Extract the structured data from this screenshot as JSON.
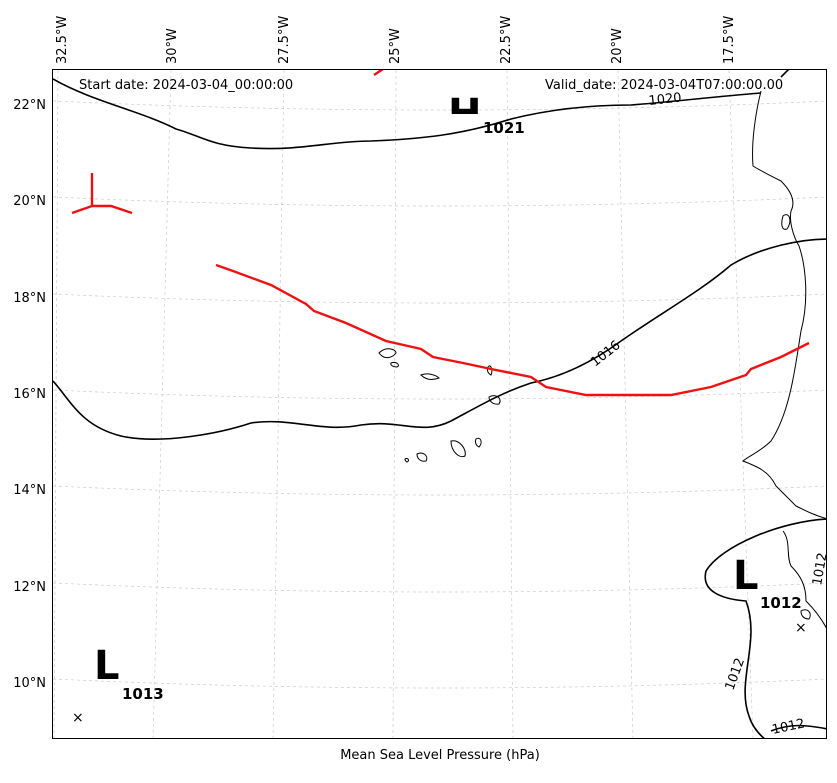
{
  "header": {
    "start_label": "Start date: 2024-03-04_00:00:00",
    "valid_label": "Valid_date: 2024-03-04T07:00:00.00"
  },
  "caption": "Mean Sea Level Pressure (hPa)",
  "longitude_labels": [
    "32.5°W",
    "30°W",
    "27.5°W",
    "25°W",
    "22.5°W",
    "20°W",
    "17.5°W"
  ],
  "latitude_labels": [
    "22°N",
    "20°N",
    "18°N",
    "16°N",
    "14°N",
    "12°N",
    "10°N"
  ],
  "isobar_labels": [
    "1020",
    "1016",
    "1012",
    "1012",
    "1012"
  ],
  "pressure_systems": [
    {
      "letter": "H",
      "value": "1021"
    },
    {
      "letter": "L",
      "value": "1012"
    },
    {
      "letter": "L",
      "value": "1013"
    }
  ],
  "colors": {
    "isobar": "#000000",
    "track": "#ee1111",
    "grid": "#cccccc",
    "coast": "#000000"
  }
}
